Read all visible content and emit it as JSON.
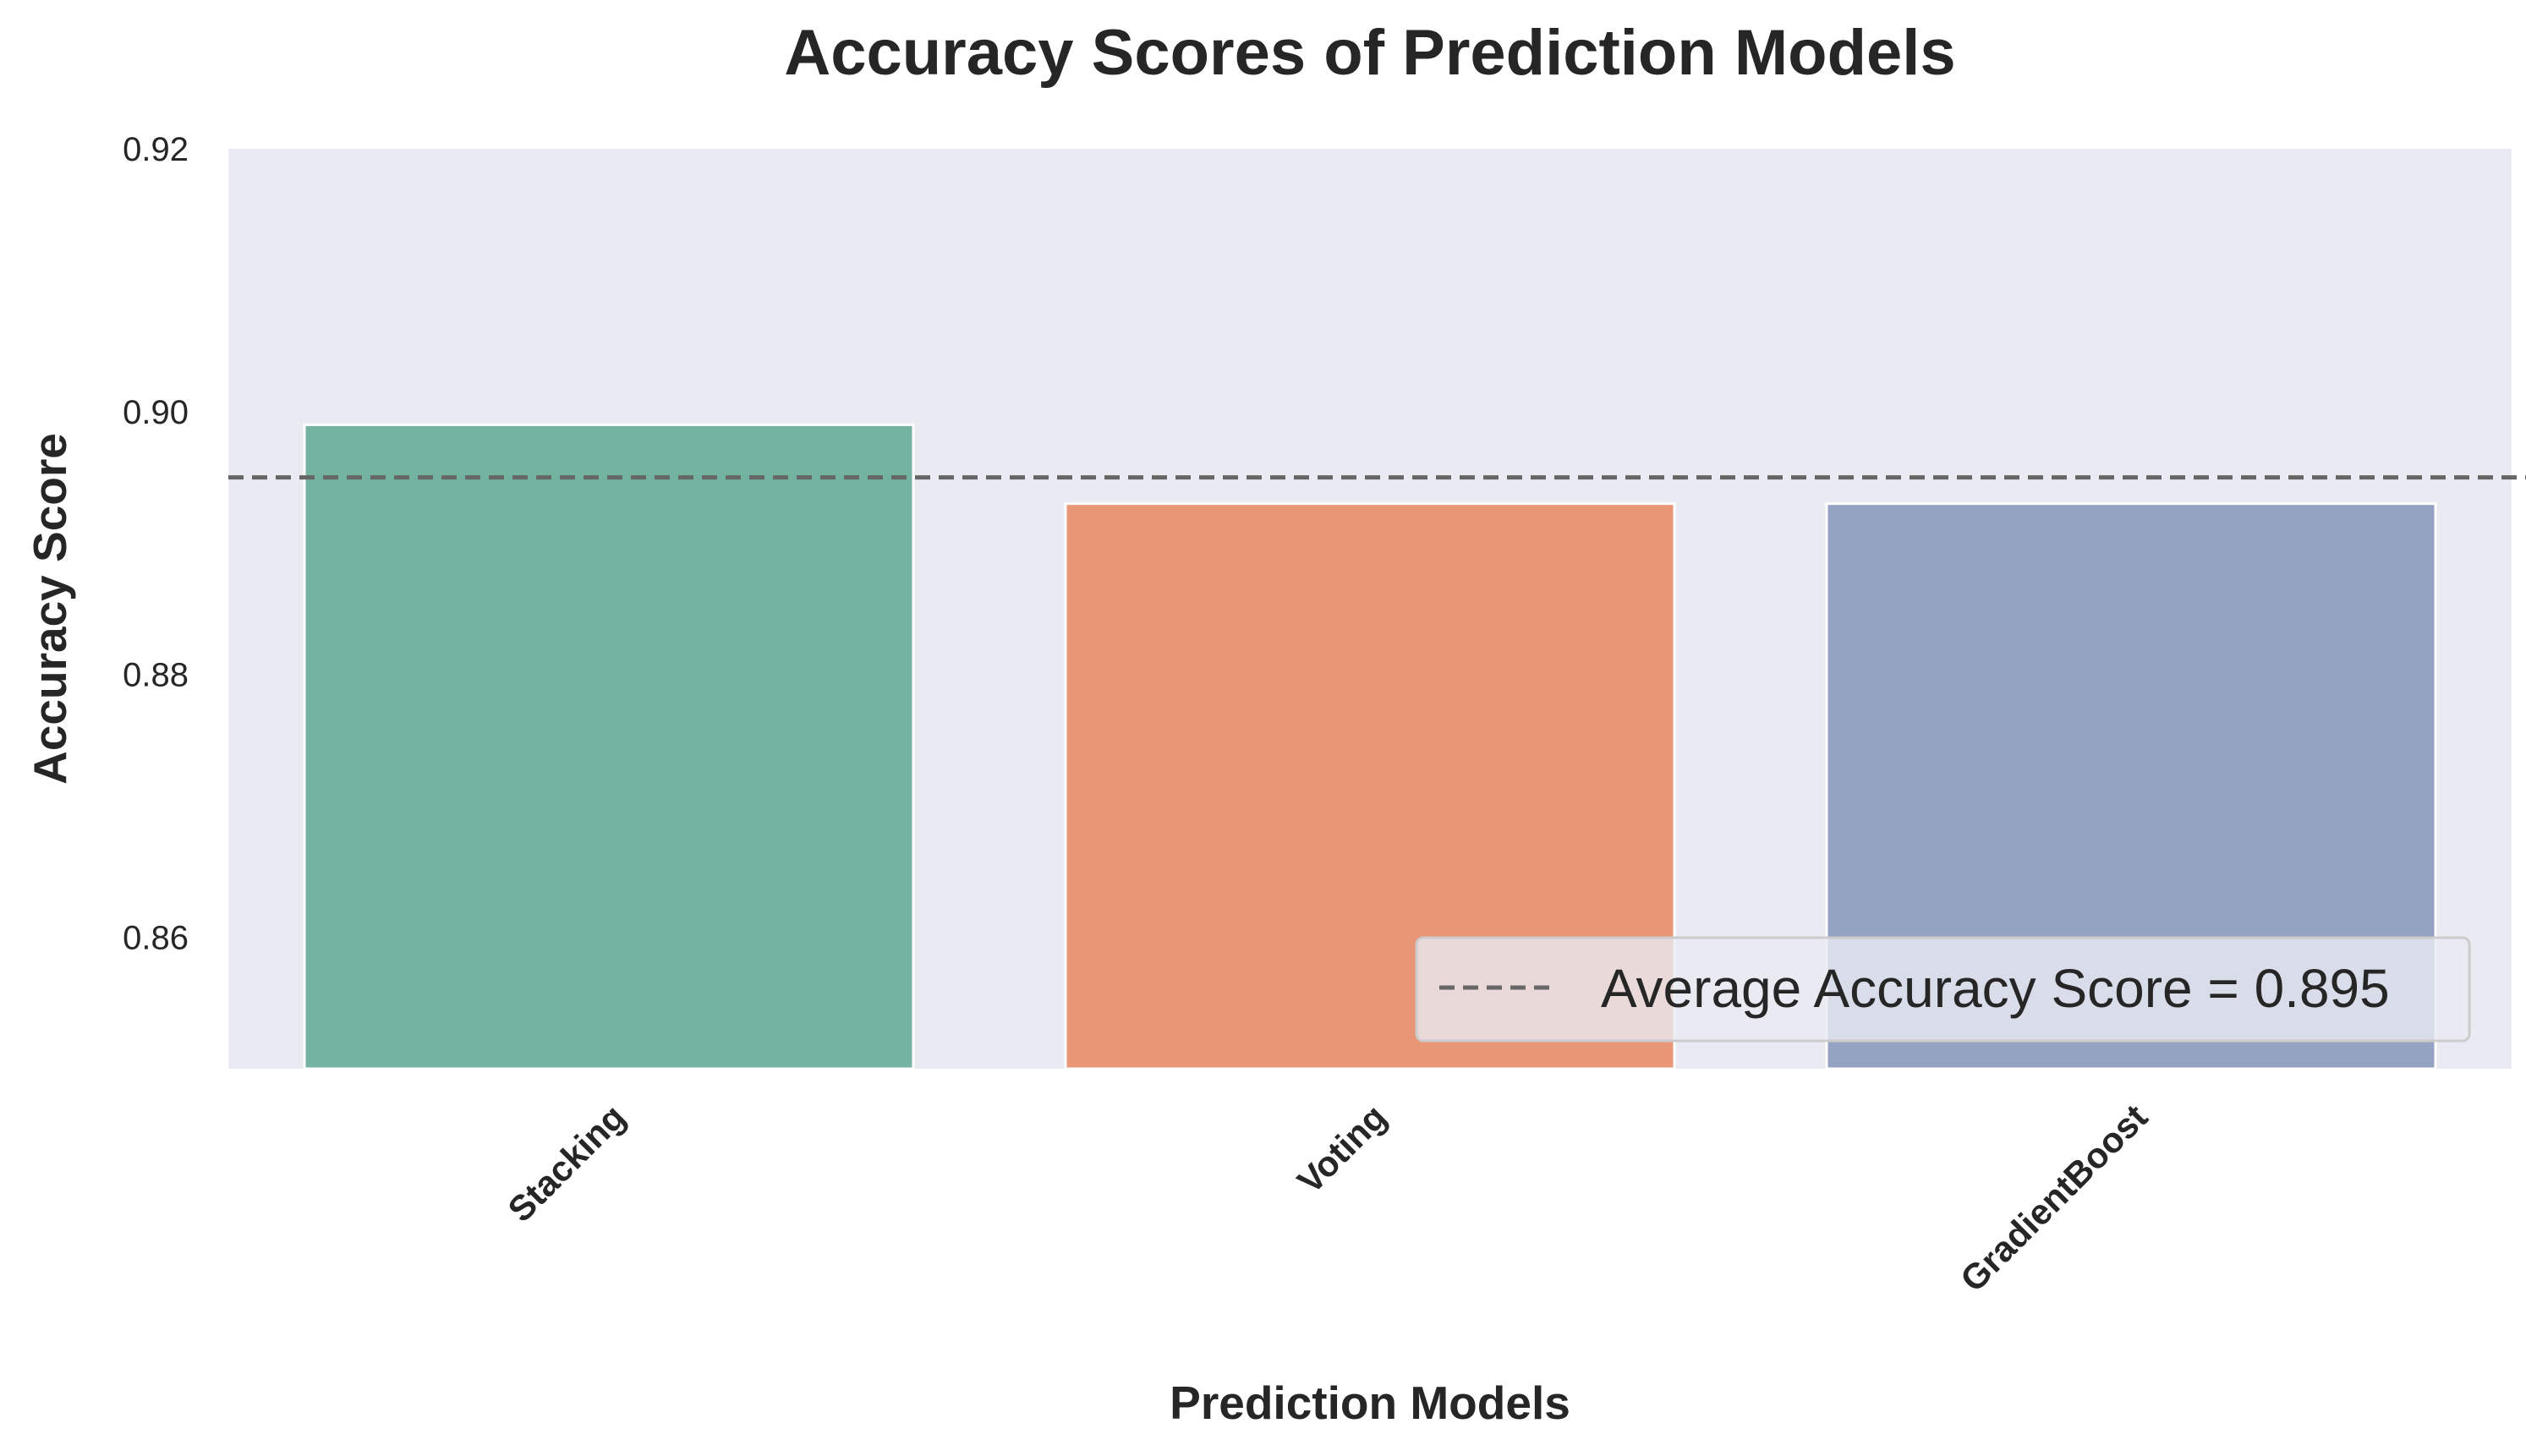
{
  "chart_data": {
    "type": "bar",
    "title": "Accuracy Scores of Prediction Models",
    "xlabel": "Prediction Models",
    "ylabel": "Accuracy Score",
    "categories": [
      "Stacking",
      "Voting",
      "GradientBoost"
    ],
    "values": [
      0.899,
      0.893,
      0.893
    ],
    "bar_colors": [
      "#73b3a0",
      "#e89675",
      "#94a3c1"
    ],
    "ylim": [
      0.85,
      0.92
    ],
    "yticks": [
      0.86,
      0.88,
      0.9,
      0.92
    ],
    "ytick_labels": [
      "0.86",
      "0.88",
      "0.90",
      "0.92"
    ],
    "xtick_rotation": 45,
    "grid": false,
    "reference_line": {
      "value": 0.895,
      "style": "dashed",
      "color": "#666666",
      "label": "Average Accuracy Score = 0.895"
    },
    "legend": {
      "position": "lower-right",
      "entries": [
        "Average Accuracy Score = 0.895"
      ]
    },
    "plot_background": "#eaeaf2"
  }
}
